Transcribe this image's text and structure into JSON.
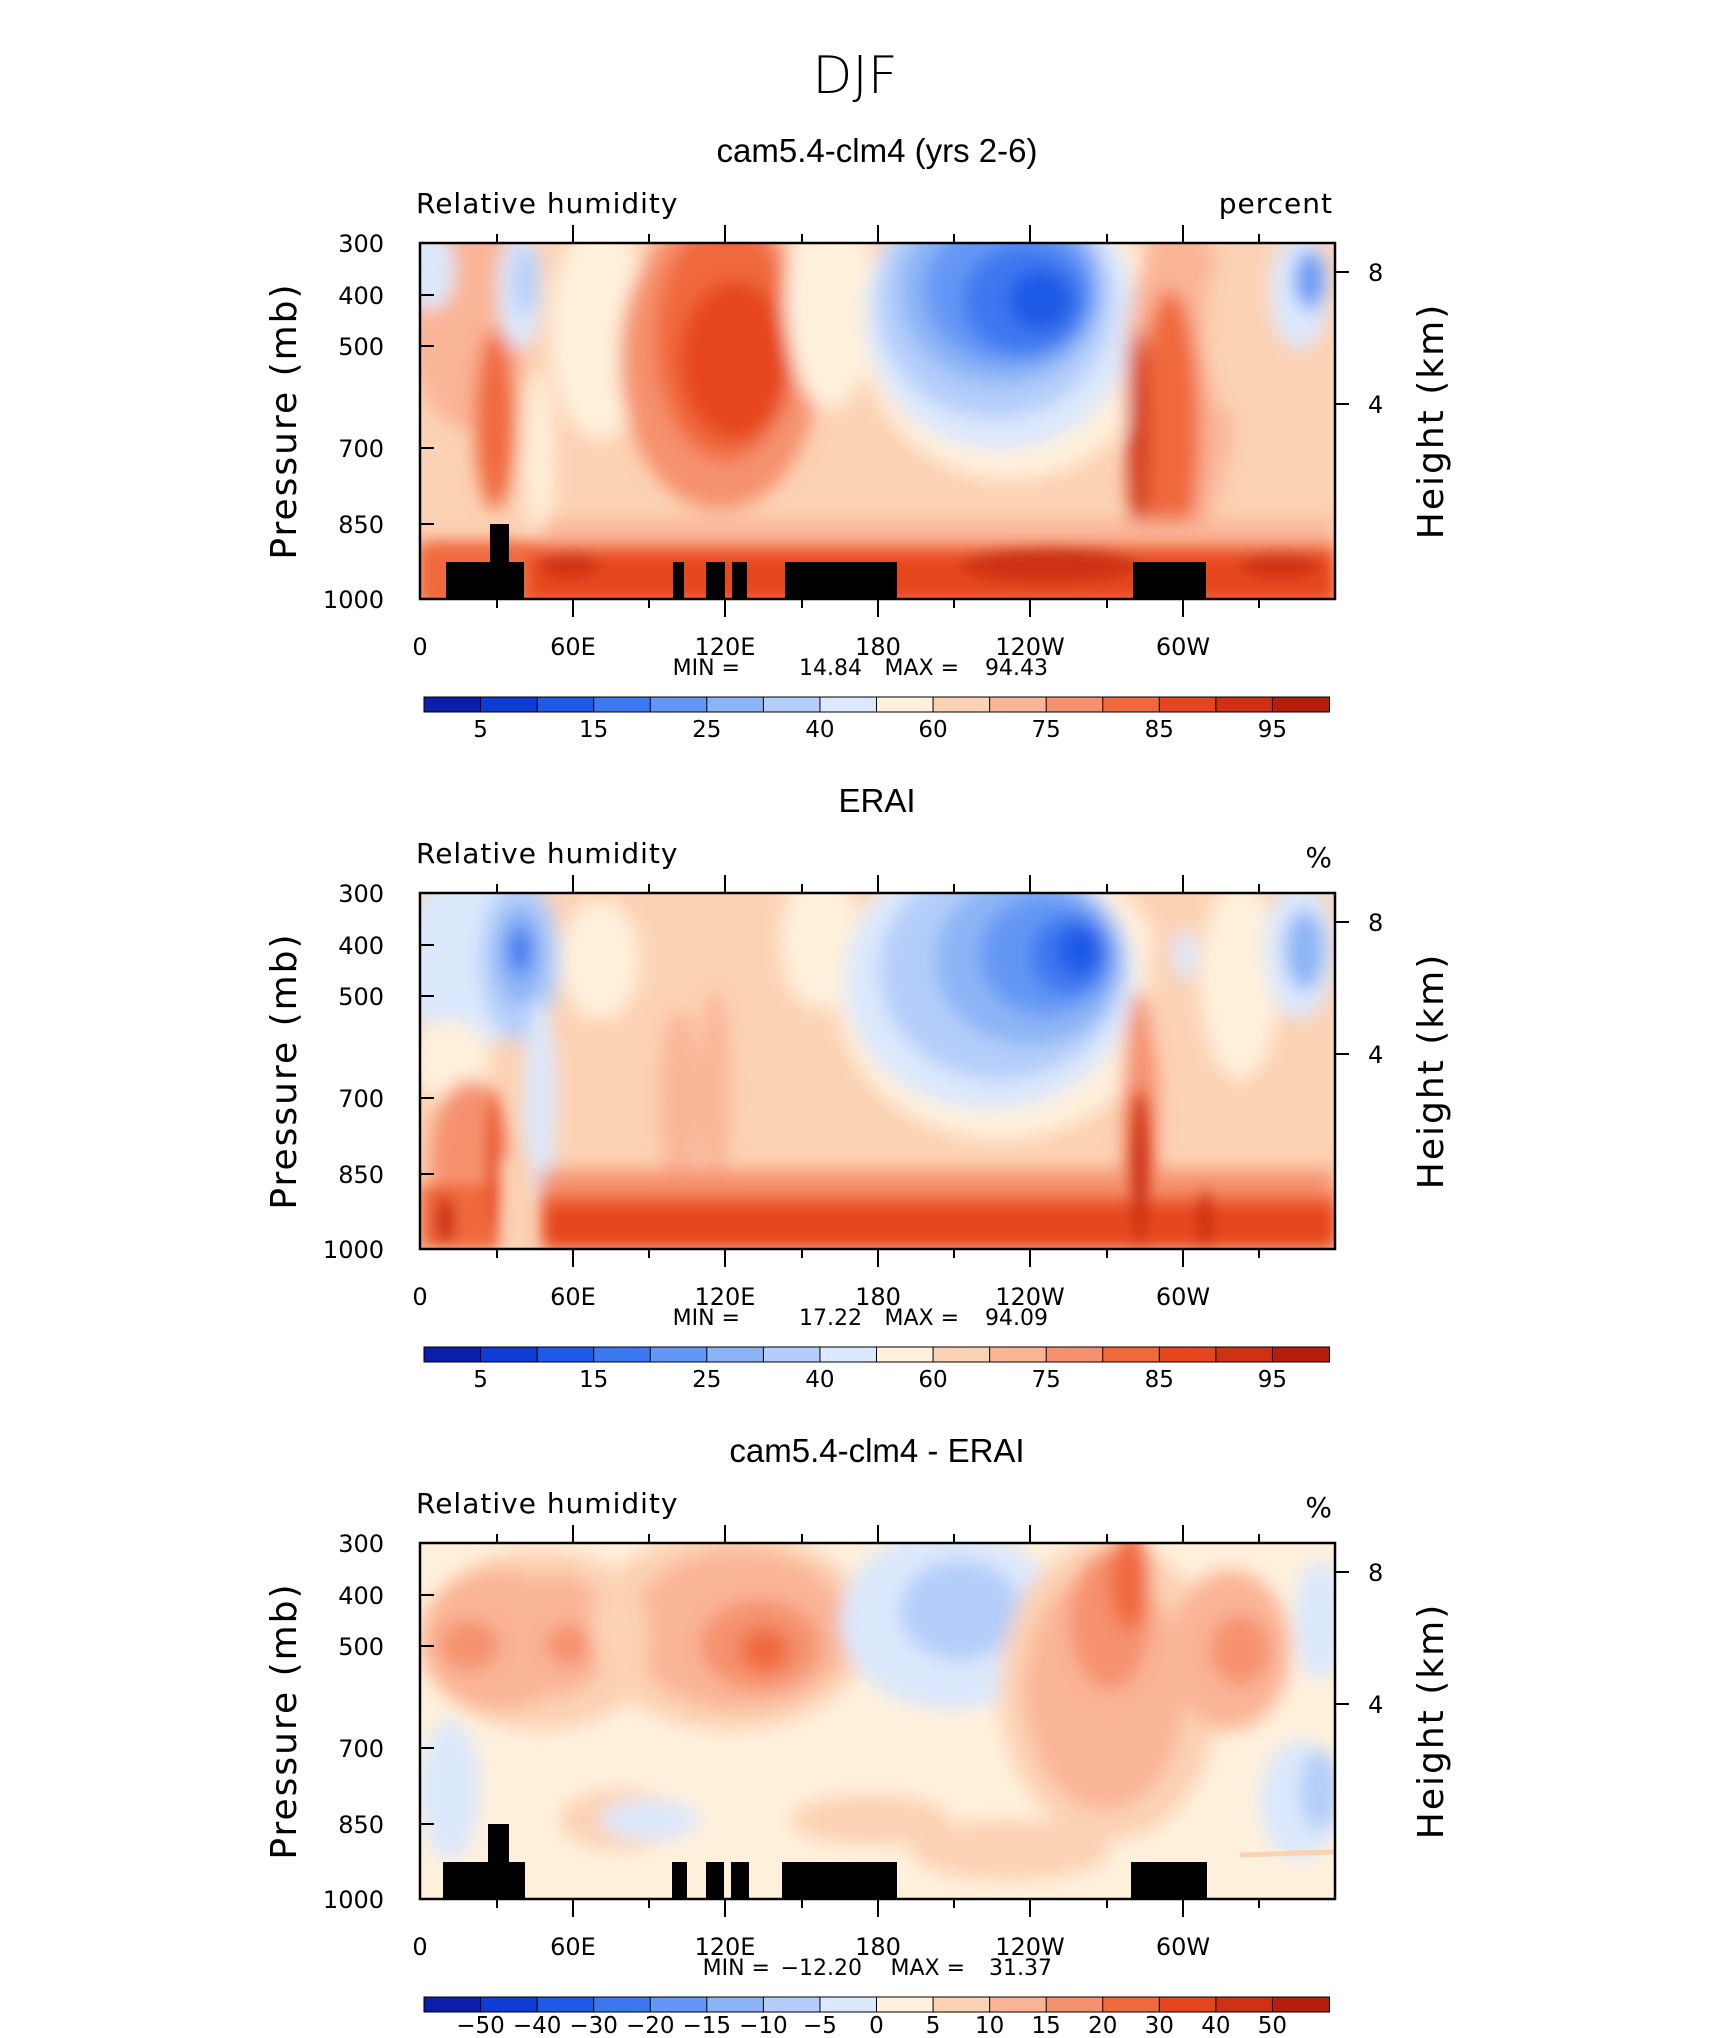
{
  "figure": {
    "title": "DJF"
  },
  "chart_data": [
    {
      "type": "heatmap",
      "title": "cam5.4-clm4 (yrs 2-6)",
      "variable_label": "Relative humidity",
      "units": "percent",
      "ylabel": "Pressure (mb)",
      "ylabel_right": "Height (km)",
      "x_ticks": [
        "0",
        "60E",
        "120E",
        "180",
        "120W",
        "60W"
      ],
      "y_ticks": [
        "300",
        "400",
        "500",
        "700",
        "850",
        "1000"
      ],
      "y_ticks_right": [
        "8",
        "4"
      ],
      "min_label": "MIN =",
      "min_value": "14.84",
      "max_label": "MAX =",
      "max_value": "94.43",
      "colorbar_labels": [
        "5",
        "15",
        "25",
        "40",
        "60",
        "75",
        "85",
        "95"
      ],
      "xlim": [
        0,
        360
      ],
      "ylim": [
        1000,
        300
      ]
    },
    {
      "type": "heatmap",
      "title": "ERAI",
      "variable_label": "Relative humidity",
      "units": "%",
      "ylabel": "Pressure (mb)",
      "ylabel_right": "Height (km)",
      "x_ticks": [
        "0",
        "60E",
        "120E",
        "180",
        "120W",
        "60W"
      ],
      "y_ticks": [
        "300",
        "400",
        "500",
        "700",
        "850",
        "1000"
      ],
      "y_ticks_right": [
        "8",
        "4"
      ],
      "min_label": "MIN =",
      "min_value": "17.22",
      "max_label": "MAX =",
      "max_value": "94.09",
      "colorbar_labels": [
        "5",
        "15",
        "25",
        "40",
        "60",
        "75",
        "85",
        "95"
      ],
      "xlim": [
        0,
        360
      ],
      "ylim": [
        1000,
        300
      ]
    },
    {
      "type": "heatmap",
      "title": "cam5.4-clm4 - ERAI",
      "variable_label": "Relative humidity",
      "units": "%",
      "ylabel": "Pressure (mb)",
      "ylabel_right": "Height (km)",
      "x_ticks": [
        "0",
        "60E",
        "120E",
        "180",
        "120W",
        "60W"
      ],
      "y_ticks": [
        "300",
        "400",
        "500",
        "700",
        "850",
        "1000"
      ],
      "y_ticks_right": [
        "8",
        "4"
      ],
      "min_label": "MIN =",
      "min_value": "−12.20",
      "max_label": "MAX =",
      "max_value": "31.37",
      "colorbar_labels": [
        "−50",
        "−40",
        "−30",
        "−20",
        "−15",
        "−10",
        "−5",
        "0",
        "5",
        "10",
        "15",
        "20",
        "30",
        "40",
        "50"
      ],
      "xlim": [
        0,
        360
      ],
      "ylim": [
        1000,
        300
      ]
    }
  ],
  "colors": {
    "scale": [
      "#00008c",
      "#0a1eaa",
      "#0f3cd2",
      "#1e5ae6",
      "#3c78f0",
      "#6496f5",
      "#8cb4f5",
      "#b4cdfa",
      "#dce8fc",
      "#fff0dc",
      "#fcd2b4",
      "#fab496",
      "#f5916e",
      "#f0693c",
      "#e6461e",
      "#cd3214",
      "#b41e0a",
      "#8c0a00"
    ]
  }
}
